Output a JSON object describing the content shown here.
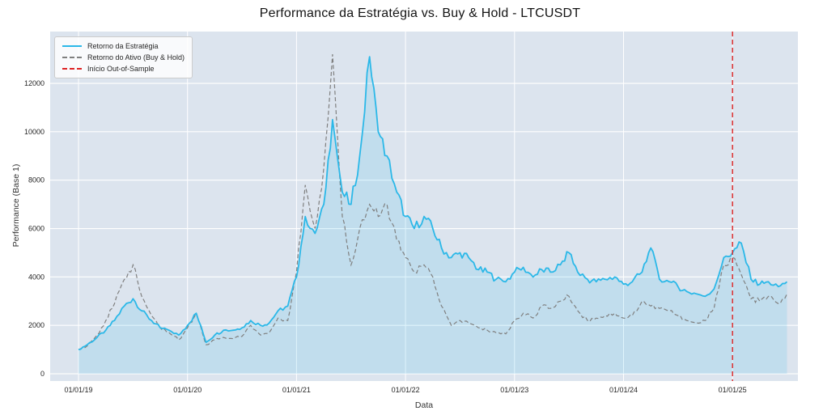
{
  "chart_data": {
    "type": "line",
    "title": "Performance da Estratégia vs. Buy & Hold - LTCUSDT",
    "xlabel": "Data",
    "ylabel": "Performance (Base 1)",
    "plot_bg": "#dce4ee",
    "grid": true,
    "xlim": [
      2018.74,
      2025.6
    ],
    "ylim": [
      -300,
      14140
    ],
    "y_ticks": [
      0,
      2000,
      4000,
      6000,
      8000,
      10000,
      12000
    ],
    "x_ticks": [
      {
        "value": 2019,
        "label": "01/01/19"
      },
      {
        "value": 2020,
        "label": "01/01/20"
      },
      {
        "value": 2021,
        "label": "01/01/21"
      },
      {
        "value": 2022,
        "label": "01/01/22"
      },
      {
        "value": 2023,
        "label": "01/01/23"
      },
      {
        "value": 2024,
        "label": "01/01/24"
      },
      {
        "value": 2025,
        "label": "01/01/25"
      }
    ],
    "legend": [
      {
        "label": "Retorno da Estratégia",
        "color": "#2bb8e8",
        "style": "solid"
      },
      {
        "label": "Retorno do Ativo (Buy & Hold)",
        "color": "#7f7f7f",
        "style": "dashed"
      },
      {
        "label": "Início Out-of-Sample",
        "color": "#dd2222",
        "style": "dashed"
      }
    ],
    "vline": {
      "x": 2025.0,
      "color": "#dd2222",
      "label": "Início Out-of-Sample"
    },
    "x": [
      2019.0,
      2019.08,
      2019.17,
      2019.25,
      2019.33,
      2019.42,
      2019.5,
      2019.58,
      2019.67,
      2019.75,
      2019.83,
      2019.92,
      2020.0,
      2020.08,
      2020.17,
      2020.25,
      2020.33,
      2020.42,
      2020.5,
      2020.58,
      2020.67,
      2020.75,
      2020.83,
      2020.92,
      2021.0,
      2021.08,
      2021.17,
      2021.25,
      2021.33,
      2021.42,
      2021.5,
      2021.58,
      2021.67,
      2021.75,
      2021.83,
      2021.92,
      2022.0,
      2022.08,
      2022.17,
      2022.25,
      2022.33,
      2022.42,
      2022.5,
      2022.58,
      2022.67,
      2022.75,
      2022.83,
      2022.92,
      2023.0,
      2023.08,
      2023.17,
      2023.25,
      2023.33,
      2023.42,
      2023.5,
      2023.58,
      2023.67,
      2023.75,
      2023.83,
      2023.92,
      2024.0,
      2024.08,
      2024.17,
      2024.25,
      2024.33,
      2024.42,
      2024.5,
      2024.58,
      2024.67,
      2024.75,
      2024.83,
      2024.92,
      2025.0,
      2025.08,
      2025.17,
      2025.25,
      2025.33,
      2025.42,
      2025.5
    ],
    "series": [
      {
        "name": "Retorno da Estratégia",
        "color": "#2bb8e8",
        "style": "solid",
        "fill": true,
        "values": [
          1000,
          1200,
          1500,
          1800,
          2200,
          2800,
          3100,
          2600,
          2200,
          1900,
          1800,
          1600,
          2000,
          2500,
          1300,
          1600,
          1800,
          1800,
          1900,
          2200,
          2000,
          2100,
          2600,
          2800,
          4000,
          6500,
          5800,
          7000,
          10500,
          7500,
          7000,
          9000,
          13100,
          10000,
          9000,
          7500,
          6500,
          6000,
          6500,
          6000,
          5200,
          4800,
          5000,
          4800,
          4300,
          4200,
          3900,
          3800,
          4200,
          4400,
          4000,
          4300,
          4200,
          4500,
          5000,
          4200,
          3900,
          3800,
          3900,
          4000,
          3700,
          3800,
          4200,
          5200,
          3900,
          3800,
          3600,
          3400,
          3300,
          3200,
          3500,
          4800,
          5000,
          5400,
          3900,
          3700,
          3800,
          3600,
          3800
        ]
      },
      {
        "name": "Retorno do Ativo (Buy & Hold)",
        "color": "#7f7f7f",
        "style": "dashed",
        "fill": false,
        "values": [
          1000,
          1150,
          1600,
          2200,
          2900,
          3900,
          4500,
          3200,
          2400,
          1900,
          1700,
          1400,
          1900,
          2500,
          1200,
          1400,
          1500,
          1450,
          1550,
          2000,
          1600,
          1700,
          2300,
          2200,
          4200,
          7800,
          6000,
          8500,
          13200,
          6500,
          4500,
          6000,
          7000,
          6500,
          7000,
          5500,
          4800,
          4200,
          4500,
          4000,
          2800,
          2000,
          2200,
          2100,
          1900,
          1800,
          1700,
          1650,
          2200,
          2500,
          2300,
          2800,
          2700,
          3000,
          3200,
          2600,
          2200,
          2300,
          2400,
          2500,
          2300,
          2400,
          3000,
          2800,
          2700,
          2600,
          2400,
          2200,
          2100,
          2200,
          2700,
          4500,
          4800,
          4100,
          3100,
          3000,
          3200,
          2900,
          3300
        ]
      }
    ]
  }
}
